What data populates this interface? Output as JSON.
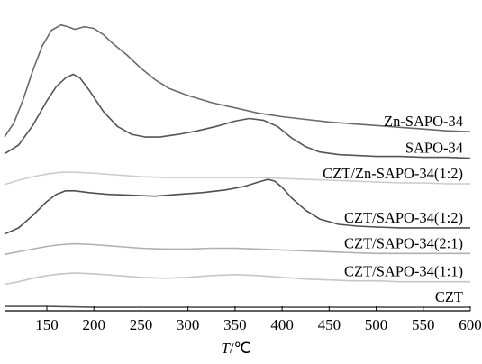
{
  "chart_data": {
    "type": "line",
    "title": "",
    "xlabel_var": "T",
    "xlabel_unit": "/℃",
    "ylabel": "",
    "xlim": [
      105,
      600
    ],
    "ylim": [
      0,
      340
    ],
    "x_ticks": [
      150,
      200,
      250,
      300,
      350,
      400,
      450,
      500,
      550,
      600
    ],
    "grid": false,
    "legend": "inline-right",
    "series": [
      {
        "name": "Zn-SAPO-34",
        "color": "#6a6a6a",
        "x": [
          105,
          115,
          125,
          135,
          145,
          155,
          165,
          172,
          180,
          190,
          200,
          210,
          220,
          235,
          250,
          265,
          280,
          300,
          325,
          350,
          375,
          400,
          425,
          450,
          475,
          500,
          525,
          550,
          575,
          600
        ],
        "y": [
          197,
          213,
          240,
          272,
          300,
          318,
          324,
          322,
          319,
          322,
          320,
          313,
          303,
          290,
          275,
          262,
          252,
          244,
          236,
          230,
          224,
          220,
          217,
          214,
          212,
          210,
          208,
          206,
          204,
          203
        ]
      },
      {
        "name": "SAPO-34",
        "color": "#555555",
        "x": [
          105,
          120,
          135,
          150,
          160,
          170,
          178,
          185,
          195,
          210,
          225,
          240,
          255,
          270,
          290,
          310,
          330,
          350,
          365,
          380,
          395,
          410,
          425,
          440,
          460,
          480,
          500,
          525,
          550,
          575,
          600
        ],
        "y": [
          178,
          188,
          210,
          238,
          254,
          264,
          268,
          264,
          250,
          226,
          209,
          200,
          197,
          197,
          200,
          204,
          209,
          215,
          218,
          216,
          209,
          196,
          186,
          180,
          177,
          176,
          175,
          175,
          174,
          174,
          173
        ]
      },
      {
        "name": "CZT/Zn-SAPO-34(1:2)",
        "color": "#cccccc",
        "x": [
          105,
          120,
          135,
          150,
          165,
          180,
          200,
          225,
          250,
          275,
          300,
          325,
          350,
          375,
          400,
          425,
          450,
          475,
          500,
          525,
          550,
          575,
          600
        ],
        "y": [
          143,
          148,
          152,
          155,
          157,
          157,
          156,
          154,
          152,
          151,
          151,
          151,
          151,
          151,
          150,
          149,
          148,
          147,
          146,
          145,
          145,
          144,
          144
        ]
      },
      {
        "name": "CZT/SAPO-34(1:2)",
        "color": "#4f4f4f",
        "x": [
          105,
          120,
          135,
          150,
          160,
          170,
          180,
          195,
          215,
          240,
          265,
          290,
          315,
          340,
          360,
          375,
          385,
          392,
          400,
          410,
          425,
          440,
          460,
          480,
          500,
          525,
          550,
          575,
          600
        ],
        "y": [
          87,
          94,
          108,
          124,
          132,
          136,
          136,
          134,
          132,
          131,
          130,
          132,
          134,
          137,
          141,
          146,
          149,
          147,
          140,
          128,
          114,
          104,
          98,
          96,
          95,
          94,
          94,
          94,
          94
        ]
      },
      {
        "name": "CZT/SAPO-34(2:1)",
        "color": "#b0b0b0",
        "x": [
          105,
          120,
          135,
          150,
          165,
          180,
          200,
          225,
          250,
          275,
          300,
          325,
          350,
          375,
          400,
          425,
          450,
          475,
          500,
          525,
          550,
          575,
          600
        ],
        "y": [
          64,
          67,
          70,
          73,
          75,
          76,
          75,
          73,
          71,
          70,
          70,
          71,
          71,
          70,
          69,
          68,
          67,
          66,
          65,
          65,
          65,
          65,
          65
        ]
      },
      {
        "name": "CZT/SAPO-34(1:1)",
        "color": "#c6c6c6",
        "x": [
          105,
          120,
          135,
          150,
          165,
          180,
          200,
          225,
          250,
          275,
          300,
          325,
          350,
          375,
          400,
          425,
          450,
          475,
          500,
          525,
          550,
          575,
          600
        ],
        "y": [
          30,
          33,
          37,
          40,
          42,
          43,
          42,
          40,
          38,
          37,
          38,
          40,
          41,
          40,
          38,
          36,
          35,
          34,
          34,
          33,
          33,
          33,
          33
        ]
      },
      {
        "name": "CZT",
        "color": "#555555",
        "x": [
          105,
          150,
          200,
          250,
          300,
          350,
          400,
          450,
          500,
          550,
          600
        ],
        "y": [
          5,
          5,
          4,
          4,
          4,
          4,
          4,
          4,
          4,
          4,
          4
        ]
      }
    ]
  }
}
